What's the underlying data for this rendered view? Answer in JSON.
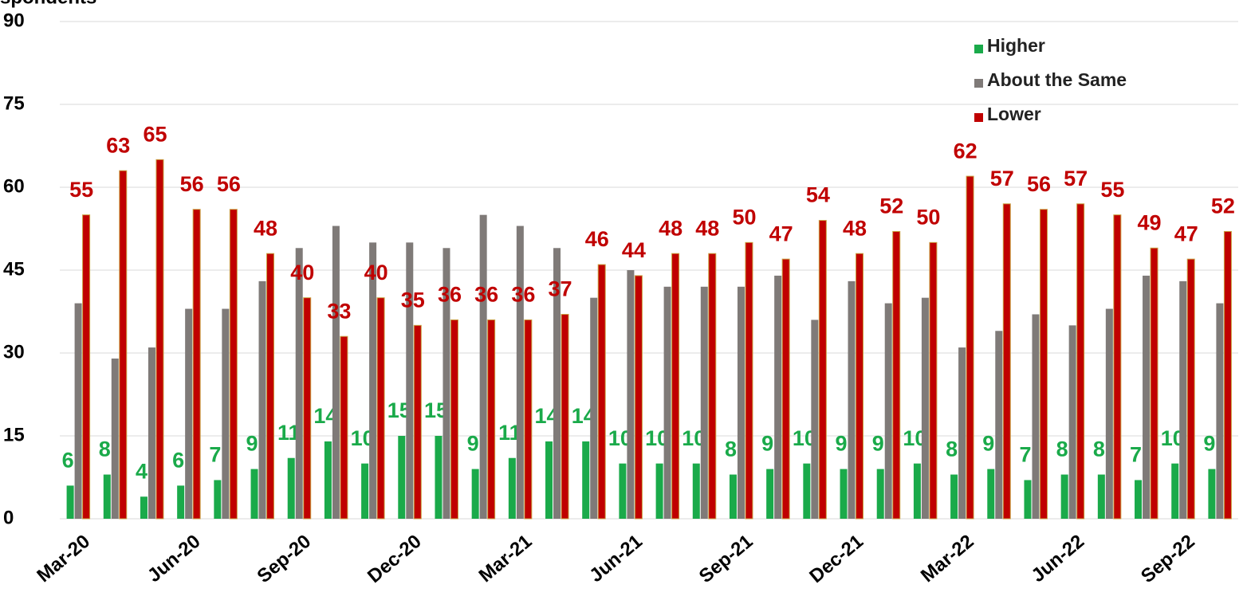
{
  "chart_data": {
    "type": "bar",
    "y_label": "spondents",
    "categories": [
      "Mar-20",
      null,
      null,
      "Jun-20",
      null,
      null,
      "Sep-20",
      null,
      null,
      "Dec-20",
      null,
      null,
      "Mar-21",
      null,
      null,
      "Jun-21",
      null,
      null,
      "Sep-21",
      null,
      null,
      "Dec-21",
      null,
      null,
      "Mar-22",
      null,
      null,
      "Jun-22",
      null,
      null,
      "Sep-22",
      null
    ],
    "series": [
      {
        "name": "Higher",
        "color": "#1aaa4a",
        "values": [
          6,
          8,
          4,
          6,
          7,
          9,
          11,
          14,
          10,
          15,
          15,
          9,
          11,
          14,
          14,
          10,
          10,
          10,
          8,
          9,
          10,
          9,
          9,
          10,
          8,
          9,
          7,
          8,
          8,
          7,
          10,
          9
        ]
      },
      {
        "name": "About the Same",
        "color": "#7f7a78",
        "values": [
          39,
          29,
          31,
          38,
          38,
          43,
          49,
          53,
          50,
          50,
          49,
          55,
          53,
          49,
          40,
          45,
          42,
          42,
          42,
          44,
          36,
          43,
          39,
          40,
          31,
          34,
          37,
          35,
          38,
          44,
          43,
          39
        ]
      },
      {
        "name": "Lower",
        "color": "#c00000",
        "values": [
          55,
          63,
          65,
          56,
          56,
          48,
          40,
          33,
          40,
          35,
          36,
          36,
          36,
          37,
          46,
          44,
          48,
          48,
          50,
          47,
          54,
          48,
          52,
          50,
          62,
          57,
          56,
          57,
          55,
          49,
          47,
          52
        ]
      }
    ],
    "data_labels": [
      "Higher",
      "Lower"
    ],
    "ylim": [
      0,
      90
    ],
    "yticks": [
      0,
      15,
      30,
      45,
      60,
      75,
      90
    ],
    "grid": true,
    "legend": "top-right"
  }
}
